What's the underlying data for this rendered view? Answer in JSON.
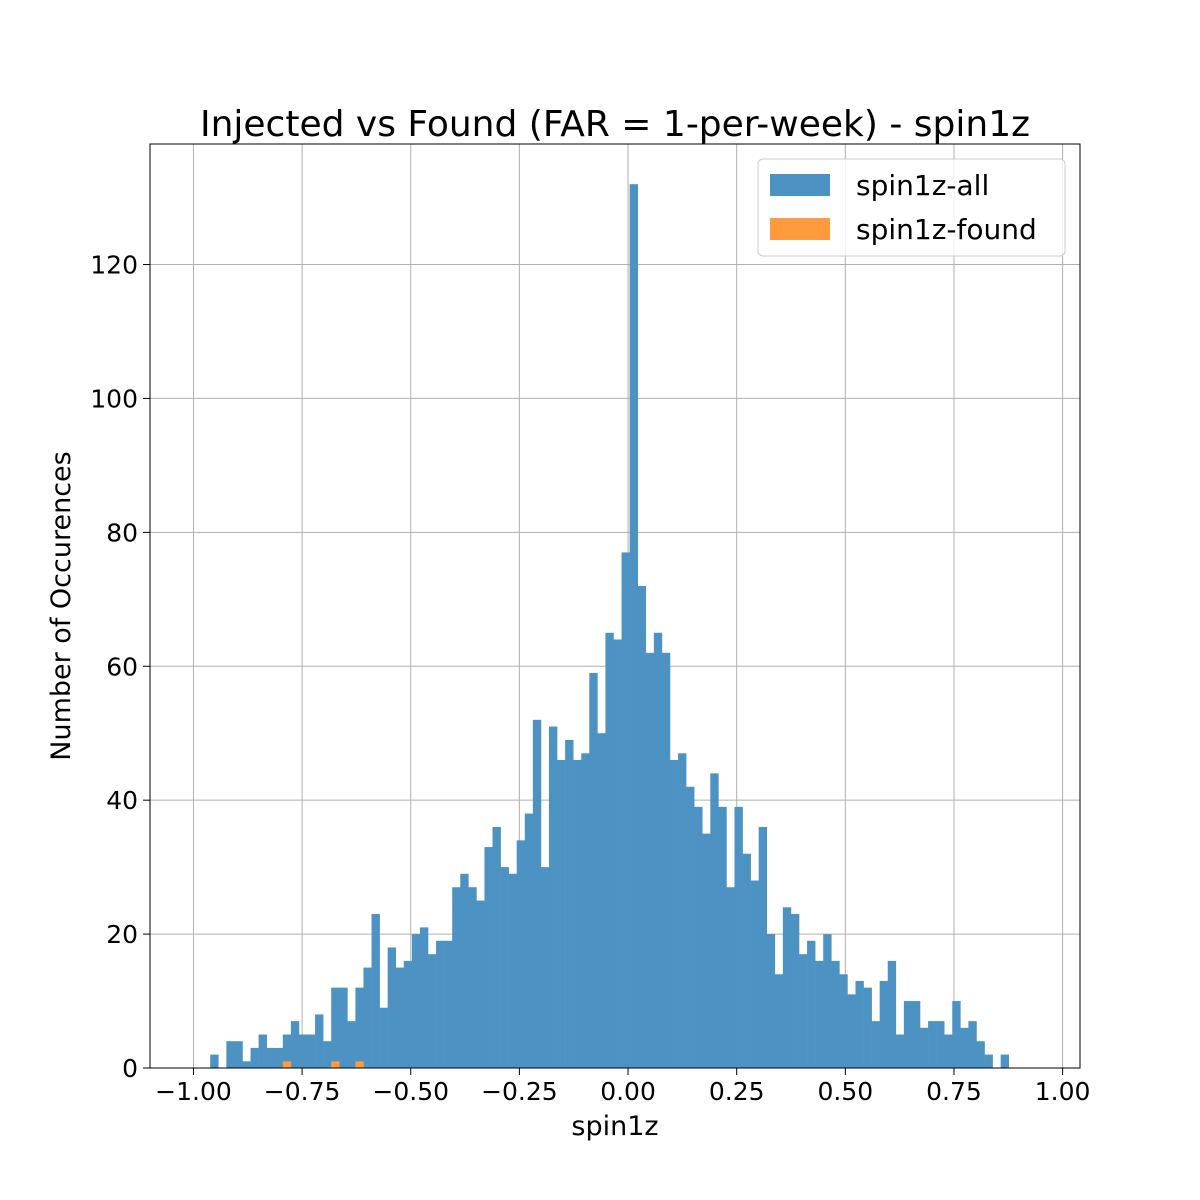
{
  "chart_data": {
    "type": "bar",
    "title": "Injected vs Found (FAR = 1-per-week) - spin1z",
    "xlabel": "spin1z",
    "ylabel": "Number of Occurences",
    "xlim": [
      -1.1,
      1.04
    ],
    "ylim": [
      0,
      138
    ],
    "x_ticks": [
      -1.0,
      -0.75,
      -0.5,
      -0.25,
      0.0,
      0.25,
      0.5,
      0.75,
      1.0
    ],
    "x_tick_labels": [
      "−1.00",
      "−0.75",
      "−0.50",
      "−0.25",
      "0.00",
      "0.25",
      "0.50",
      "0.75",
      "1.00"
    ],
    "y_ticks": [
      0,
      20,
      40,
      60,
      80,
      100,
      120
    ],
    "y_tick_labels": [
      "0",
      "20",
      "40",
      "60",
      "80",
      "100",
      "120"
    ],
    "grid": true,
    "legend_position": "top-right",
    "colors": {
      "all": "#4c93c4",
      "found": "#ff9a3d"
    },
    "series": [
      {
        "name": "spin1z-all",
        "bin_start": -0.98,
        "bin_width": 0.01856,
        "values": [
          0,
          2,
          0,
          4,
          4,
          1,
          3,
          5,
          3,
          3,
          5,
          7,
          5,
          5,
          8,
          4,
          12,
          12,
          7,
          12,
          15,
          23,
          9,
          18,
          15,
          16,
          20,
          21,
          17,
          19,
          19,
          27,
          29,
          27,
          25,
          33,
          36,
          30,
          29,
          34,
          38,
          52,
          30,
          51,
          46,
          49,
          46,
          47,
          59,
          50,
          65,
          64,
          77,
          132,
          72,
          62,
          65,
          62,
          46,
          47,
          42,
          39,
          35,
          44,
          39,
          27,
          39,
          32,
          28,
          36,
          20,
          14,
          24,
          23,
          17,
          19,
          16,
          20,
          16,
          14,
          11,
          13,
          12,
          7,
          13,
          16,
          5,
          10,
          10,
          6,
          7,
          7,
          5,
          10,
          6,
          7,
          4,
          2,
          0,
          2
        ]
      },
      {
        "name": "spin1z-found",
        "bin_start": -0.98,
        "bin_width": 0.01856,
        "values": [
          0,
          0,
          0,
          0,
          0,
          0,
          0,
          0,
          0,
          0,
          1,
          0,
          0,
          0,
          0,
          0,
          1,
          0,
          0,
          1,
          0,
          0,
          0,
          0,
          0,
          0,
          0,
          0,
          0,
          0,
          0,
          0,
          0,
          0,
          0,
          0,
          0,
          0,
          0,
          0,
          0,
          0,
          0,
          0,
          0,
          0,
          0,
          0,
          0,
          0,
          0,
          0,
          0,
          0,
          0,
          0,
          0,
          0,
          0,
          0,
          0,
          0,
          0,
          0,
          0,
          0,
          0,
          0,
          0,
          0,
          0,
          0,
          0,
          0,
          0,
          0,
          0,
          0,
          0,
          0,
          0,
          0,
          0,
          0,
          0,
          0,
          0,
          0,
          0,
          0,
          0,
          0,
          0,
          0,
          0,
          0,
          0,
          0,
          0,
          0
        ]
      }
    ]
  }
}
